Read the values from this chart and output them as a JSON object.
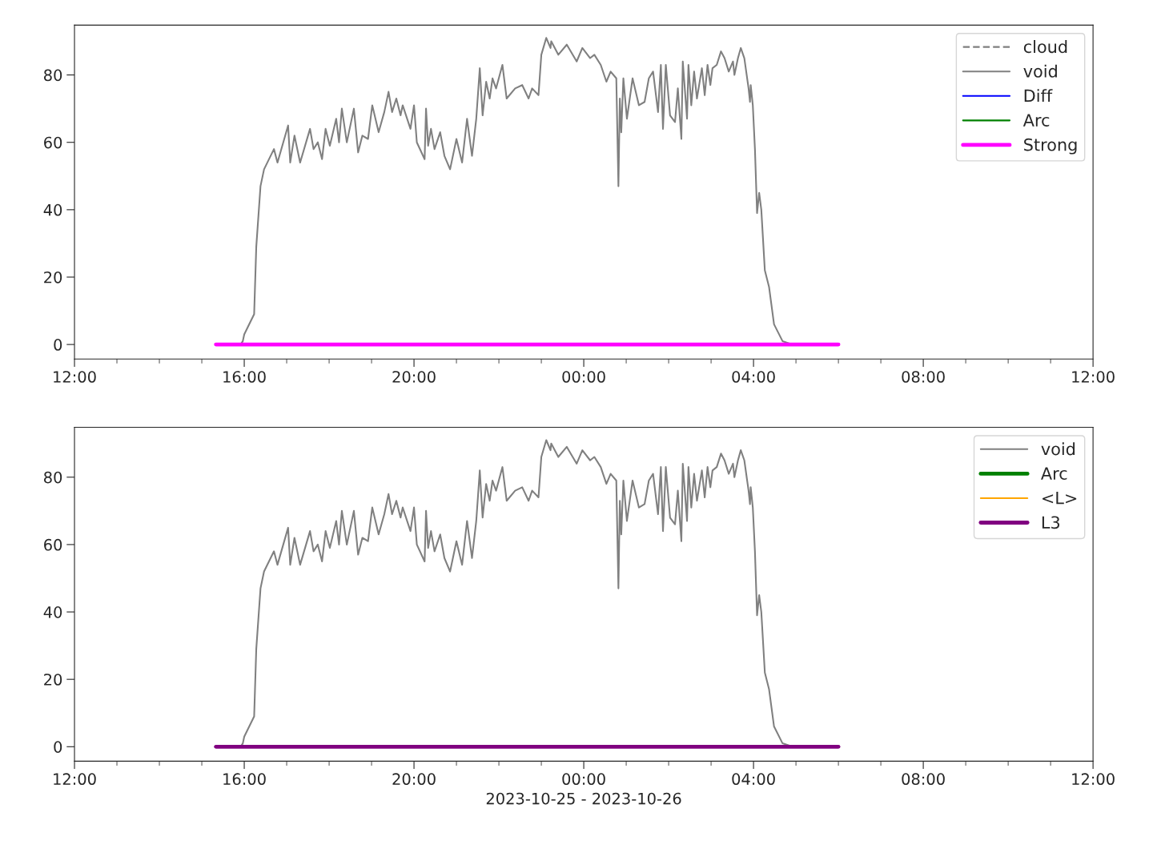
{
  "chart_data": [
    {
      "type": "line",
      "legend": "top right",
      "x": [
        "2023-10-25T15:20",
        "2023-10-25T15:55",
        "2023-10-25T15:58",
        "2023-10-25T16:00",
        "2023-10-25T16:14",
        "2023-10-25T16:17",
        "2023-10-25T16:23",
        "2023-10-25T16:28",
        "2023-10-25T16:42",
        "2023-10-25T16:47",
        "2023-10-25T17:02",
        "2023-10-25T17:05",
        "2023-10-25T17:11",
        "2023-10-25T17:19",
        "2023-10-25T17:33",
        "2023-10-25T17:38",
        "2023-10-25T17:44",
        "2023-10-25T17:50",
        "2023-10-25T17:55",
        "2023-10-25T18:01",
        "2023-10-25T18:10",
        "2023-10-25T18:14",
        "2023-10-25T18:18",
        "2023-10-25T18:25",
        "2023-10-25T18:35",
        "2023-10-25T18:41",
        "2023-10-25T18:47",
        "2023-10-25T18:55",
        "2023-10-25T19:01",
        "2023-10-25T19:10",
        "2023-10-25T19:18",
        "2023-10-25T19:24",
        "2023-10-25T19:29",
        "2023-10-25T19:35",
        "2023-10-25T19:41",
        "2023-10-25T19:44",
        "2023-10-25T19:55",
        "2023-10-25T20:00",
        "2023-10-25T20:04",
        "2023-10-25T20:15",
        "2023-10-25T20:17",
        "2023-10-25T20:20",
        "2023-10-25T20:24",
        "2023-10-25T20:29",
        "2023-10-25T20:37",
        "2023-10-25T20:43",
        "2023-10-25T20:51",
        "2023-10-25T21:00",
        "2023-10-25T21:08",
        "2023-10-25T21:15",
        "2023-10-25T21:22",
        "2023-10-25T21:28",
        "2023-10-25T21:33",
        "2023-10-25T21:37",
        "2023-10-25T21:42",
        "2023-10-25T21:47",
        "2023-10-25T21:51",
        "2023-10-25T21:56",
        "2023-10-25T22:05",
        "2023-10-25T22:11",
        "2023-10-25T22:23",
        "2023-10-25T22:33",
        "2023-10-25T22:42",
        "2023-10-25T22:47",
        "2023-10-25T22:56",
        "2023-10-25T23:00",
        "2023-10-25T23:07",
        "2023-10-25T23:13",
        "2023-10-25T23:14",
        "2023-10-25T23:24",
        "2023-10-25T23:36",
        "2023-10-25T23:50",
        "2023-10-25T23:58",
        "2023-10-26T00:09",
        "2023-10-26T00:15",
        "2023-10-26T00:24",
        "2023-10-26T00:32",
        "2023-10-26T00:38",
        "2023-10-26T00:46",
        "2023-10-26T00:49",
        "2023-10-26T00:51",
        "2023-10-26T00:53",
        "2023-10-26T00:56",
        "2023-10-26T01:01",
        "2023-10-26T01:09",
        "2023-10-26T01:18",
        "2023-10-26T01:26",
        "2023-10-26T01:32",
        "2023-10-26T01:38",
        "2023-10-26T01:45",
        "2023-10-26T01:49",
        "2023-10-26T01:52",
        "2023-10-26T01:56",
        "2023-10-26T02:02",
        "2023-10-26T02:09",
        "2023-10-26T02:13",
        "2023-10-26T02:18",
        "2023-10-26T02:20",
        "2023-10-26T02:26",
        "2023-10-26T02:28",
        "2023-10-26T02:32",
        "2023-10-26T02:36",
        "2023-10-26T02:40",
        "2023-10-26T02:47",
        "2023-10-26T02:51",
        "2023-10-26T02:55",
        "2023-10-26T02:59",
        "2023-10-26T03:02",
        "2023-10-26T03:08",
        "2023-10-26T03:14",
        "2023-10-26T03:19",
        "2023-10-26T03:25",
        "2023-10-26T03:31",
        "2023-10-26T03:33",
        "2023-10-26T03:38",
        "2023-10-26T03:42",
        "2023-10-26T03:47",
        "2023-10-26T03:53",
        "2023-10-26T03:55",
        "2023-10-26T03:56",
        "2023-10-26T03:59",
        "2023-10-26T04:02",
        "2023-10-26T04:05",
        "2023-10-26T04:08",
        "2023-10-26T04:11",
        "2023-10-26T04:16",
        "2023-10-26T04:22",
        "2023-10-26T04:29",
        "2023-10-26T04:41",
        "2023-10-26T04:55",
        "2023-10-26T06:00"
      ],
      "series": [
        {
          "name": "cloud",
          "color": "#808080",
          "line_style": "dashed",
          "values": [
            null,
            null,
            null,
            null,
            null,
            null,
            null,
            null,
            null,
            null,
            null,
            null,
            null,
            null,
            null,
            null,
            null,
            null,
            null,
            null,
            null,
            null,
            null,
            null,
            null,
            null,
            null,
            null,
            null,
            null,
            null,
            null,
            null,
            null,
            null,
            null,
            null,
            null,
            null,
            null,
            null,
            null,
            null,
            null,
            null,
            null,
            null,
            null,
            null,
            null,
            null,
            null,
            null,
            null,
            null,
            null,
            null,
            null,
            null,
            null,
            null,
            null,
            null,
            null,
            null,
            null,
            null,
            null,
            null,
            null,
            null,
            null,
            null,
            null,
            null,
            null,
            null,
            null,
            null,
            null,
            null,
            null,
            null,
            null,
            null,
            null,
            null,
            null,
            null,
            null,
            null,
            null,
            null,
            null,
            null,
            null,
            null,
            null,
            null,
            null,
            null,
            null,
            null,
            null,
            null,
            null,
            null,
            null,
            null,
            null,
            null,
            null,
            null,
            null,
            null,
            null,
            null,
            null,
            null,
            null,
            null,
            null,
            null,
            null,
            null,
            null,
            null,
            null,
            null,
            null,
            null
          ]
        },
        {
          "name": "void",
          "color": "#808080",
          "values": [
            0,
            0,
            1,
            3,
            9,
            29,
            47,
            52,
            58,
            54,
            65,
            54,
            62,
            54,
            64,
            58,
            60,
            55,
            64,
            59,
            67,
            60,
            70,
            60,
            70,
            57,
            62,
            61,
            71,
            63,
            69,
            75,
            69,
            73,
            68,
            71,
            64,
            71,
            60,
            55,
            70,
            59,
            64,
            58,
            63,
            56,
            52,
            61,
            54,
            67,
            56,
            67,
            82,
            68,
            78,
            73,
            79,
            76,
            83,
            73,
            76,
            77,
            73,
            76,
            74,
            86,
            91,
            88,
            90,
            86,
            89,
            84,
            88,
            85,
            86,
            83,
            78,
            81,
            79,
            47,
            73,
            63,
            79,
            67,
            79,
            71,
            72,
            79,
            81,
            69,
            83,
            64,
            83,
            68,
            66,
            76,
            61,
            84,
            67,
            83,
            71,
            81,
            73,
            82,
            74,
            83,
            77,
            82,
            83,
            87,
            85,
            81,
            84,
            80,
            85,
            88,
            85,
            76,
            72,
            77,
            71,
            58,
            39,
            45,
            40,
            22,
            17,
            6,
            1,
            0,
            0
          ]
        },
        {
          "name": "Diff",
          "color": "#0000ff",
          "values": [
            null,
            null,
            null,
            null,
            null,
            null,
            null,
            null,
            null,
            null,
            null,
            null,
            null,
            null,
            null,
            null,
            null,
            null,
            null,
            null,
            null,
            null,
            null,
            null,
            null,
            null,
            null,
            null,
            null,
            null,
            null,
            null,
            null,
            null,
            null,
            null,
            null,
            null,
            null,
            null,
            null,
            null,
            null,
            null,
            null,
            null,
            null,
            null,
            null,
            null,
            null,
            null,
            null,
            null,
            null,
            null,
            null,
            null,
            null,
            null,
            null,
            null,
            null,
            null,
            null,
            null,
            null,
            null,
            null,
            null,
            null,
            null,
            null,
            null,
            null,
            null,
            null,
            null,
            null,
            null,
            null,
            null,
            null,
            null,
            null,
            null,
            null,
            null,
            null,
            null,
            null,
            null,
            null,
            null,
            null,
            null,
            null,
            null,
            null,
            null,
            null,
            null,
            null,
            null,
            null,
            null,
            null,
            null,
            null,
            null,
            null,
            null,
            null,
            null,
            null,
            null,
            null,
            null,
            null,
            null,
            null,
            null,
            null,
            null,
            null,
            null,
            null,
            null,
            null,
            null,
            null
          ]
        },
        {
          "name": "Arc",
          "color": "#008000",
          "values": [
            null,
            null,
            null,
            null,
            null,
            null,
            null,
            null,
            null,
            null,
            null,
            null,
            null,
            null,
            null,
            null,
            null,
            null,
            null,
            null,
            null,
            null,
            null,
            null,
            null,
            null,
            null,
            null,
            null,
            null,
            null,
            null,
            null,
            null,
            null,
            null,
            null,
            null,
            null,
            null,
            null,
            null,
            null,
            null,
            null,
            null,
            null,
            null,
            null,
            null,
            null,
            null,
            null,
            null,
            null,
            null,
            null,
            null,
            null,
            null,
            null,
            null,
            null,
            null,
            null,
            null,
            null,
            null,
            null,
            null,
            null,
            null,
            null,
            null,
            null,
            null,
            null,
            null,
            null,
            null,
            null,
            null,
            null,
            null,
            null,
            null,
            null,
            null,
            null,
            null,
            null,
            null,
            null,
            null,
            null,
            null,
            null,
            null,
            null,
            null,
            null,
            null,
            null,
            null,
            null,
            null,
            null,
            null,
            null,
            null,
            null,
            null,
            null,
            null,
            null,
            null,
            null,
            null,
            null,
            null,
            null,
            null,
            null,
            null,
            null,
            null,
            null,
            null,
            null,
            null,
            null
          ]
        },
        {
          "name": "Strong",
          "color": "#ff00ff",
          "x": [
            "2023-10-25T15:20",
            "2023-10-26T06:00"
          ],
          "values": [
            0,
            0
          ]
        }
      ],
      "xlim": [
        "2023-10-25T12:00",
        "2023-10-26T12:00"
      ],
      "xticks": [
        {
          "value": "2023-10-25T12:00",
          "label": "12:00"
        },
        {
          "value": "2023-10-25T13:00",
          "label": null
        },
        {
          "value": "2023-10-25T14:00",
          "label": null
        },
        {
          "value": "2023-10-25T15:00",
          "label": null
        },
        {
          "value": "2023-10-25T16:00",
          "label": "16:00"
        },
        {
          "value": "2023-10-25T17:00",
          "label": null
        },
        {
          "value": "2023-10-25T18:00",
          "label": null
        },
        {
          "value": "2023-10-25T19:00",
          "label": null
        },
        {
          "value": "2023-10-25T20:00",
          "label": "20:00"
        },
        {
          "value": "2023-10-25T21:00",
          "label": null
        },
        {
          "value": "2023-10-25T22:00",
          "label": null
        },
        {
          "value": "2023-10-25T23:00",
          "label": null
        },
        {
          "value": "2023-10-26T00:00",
          "label": "00:00"
        },
        {
          "value": "2023-10-26T01:00",
          "label": null
        },
        {
          "value": "2023-10-26T02:00",
          "label": null
        },
        {
          "value": "2023-10-26T03:00",
          "label": null
        },
        {
          "value": "2023-10-26T04:00",
          "label": "04:00"
        },
        {
          "value": "2023-10-26T05:00",
          "label": null
        },
        {
          "value": "2023-10-26T06:00",
          "label": null
        },
        {
          "value": "2023-10-26T07:00",
          "label": null
        },
        {
          "value": "2023-10-26T08:00",
          "label": "08:00"
        },
        {
          "value": "2023-10-26T09:00",
          "label": null
        },
        {
          "value": "2023-10-26T10:00",
          "label": null
        },
        {
          "value": "2023-10-26T11:00",
          "label": null
        },
        {
          "value": "2023-10-26T12:00",
          "label": "12:00"
        }
      ],
      "ylim": [
        -4.3,
        94.8
      ],
      "yticks": [
        0,
        20,
        40,
        60,
        80
      ]
    },
    {
      "type": "line",
      "legend": "top right",
      "xlabel": "2023-10-25 - 2023-10-26",
      "x": [
        "2023-10-25T15:20",
        "2023-10-25T15:55",
        "2023-10-25T15:58",
        "2023-10-25T16:00",
        "2023-10-25T16:14",
        "2023-10-25T16:17",
        "2023-10-25T16:23",
        "2023-10-25T16:28",
        "2023-10-25T16:42",
        "2023-10-25T16:47",
        "2023-10-25T17:02",
        "2023-10-25T17:05",
        "2023-10-25T17:11",
        "2023-10-25T17:19",
        "2023-10-25T17:33",
        "2023-10-25T17:38",
        "2023-10-25T17:44",
        "2023-10-25T17:50",
        "2023-10-25T17:55",
        "2023-10-25T18:01",
        "2023-10-25T18:10",
        "2023-10-25T18:14",
        "2023-10-25T18:18",
        "2023-10-25T18:25",
        "2023-10-25T18:35",
        "2023-10-25T18:41",
        "2023-10-25T18:47",
        "2023-10-25T18:55",
        "2023-10-25T19:01",
        "2023-10-25T19:10",
        "2023-10-25T19:18",
        "2023-10-25T19:24",
        "2023-10-25T19:29",
        "2023-10-25T19:35",
        "2023-10-25T19:41",
        "2023-10-25T19:44",
        "2023-10-25T19:55",
        "2023-10-25T20:00",
        "2023-10-25T20:04",
        "2023-10-25T20:15",
        "2023-10-25T20:17",
        "2023-10-25T20:20",
        "2023-10-25T20:24",
        "2023-10-25T20:29",
        "2023-10-25T20:37",
        "2023-10-25T20:43",
        "2023-10-25T20:51",
        "2023-10-25T21:00",
        "2023-10-25T21:08",
        "2023-10-25T21:15",
        "2023-10-25T21:22",
        "2023-10-25T21:28",
        "2023-10-25T21:33",
        "2023-10-25T21:37",
        "2023-10-25T21:42",
        "2023-10-25T21:47",
        "2023-10-25T21:51",
        "2023-10-25T21:56",
        "2023-10-25T22:05",
        "2023-10-25T22:11",
        "2023-10-25T22:23",
        "2023-10-25T22:33",
        "2023-10-25T22:42",
        "2023-10-25T22:47",
        "2023-10-25T22:56",
        "2023-10-25T23:00",
        "2023-10-25T23:07",
        "2023-10-25T23:13",
        "2023-10-25T23:14",
        "2023-10-25T23:24",
        "2023-10-25T23:36",
        "2023-10-25T23:50",
        "2023-10-25T23:58",
        "2023-10-26T00:09",
        "2023-10-26T00:15",
        "2023-10-26T00:24",
        "2023-10-26T00:32",
        "2023-10-26T00:38",
        "2023-10-26T00:46",
        "2023-10-26T00:49",
        "2023-10-26T00:51",
        "2023-10-26T00:53",
        "2023-10-26T00:56",
        "2023-10-26T01:01",
        "2023-10-26T01:09",
        "2023-10-26T01:18",
        "2023-10-26T01:26",
        "2023-10-26T01:32",
        "2023-10-26T01:38",
        "2023-10-26T01:45",
        "2023-10-26T01:49",
        "2023-10-26T01:52",
        "2023-10-26T01:56",
        "2023-10-26T02:02",
        "2023-10-26T02:09",
        "2023-10-26T02:13",
        "2023-10-26T02:18",
        "2023-10-26T02:20",
        "2023-10-26T02:26",
        "2023-10-26T02:28",
        "2023-10-26T02:32",
        "2023-10-26T02:36",
        "2023-10-26T02:40",
        "2023-10-26T02:47",
        "2023-10-26T02:51",
        "2023-10-26T02:55",
        "2023-10-26T02:59",
        "2023-10-26T03:02",
        "2023-10-26T03:08",
        "2023-10-26T03:14",
        "2023-10-26T03:19",
        "2023-10-26T03:25",
        "2023-10-26T03:31",
        "2023-10-26T03:33",
        "2023-10-26T03:38",
        "2023-10-26T03:42",
        "2023-10-26T03:47",
        "2023-10-26T03:53",
        "2023-10-26T03:55",
        "2023-10-26T03:56",
        "2023-10-26T03:59",
        "2023-10-26T04:02",
        "2023-10-26T04:05",
        "2023-10-26T04:08",
        "2023-10-26T04:11",
        "2023-10-26T04:16",
        "2023-10-26T04:22",
        "2023-10-26T04:29",
        "2023-10-26T04:41",
        "2023-10-26T04:55",
        "2023-10-26T06:00"
      ],
      "series": [
        {
          "name": "void",
          "color": "#808080",
          "values": [
            0,
            0,
            1,
            3,
            9,
            29,
            47,
            52,
            58,
            54,
            65,
            54,
            62,
            54,
            64,
            58,
            60,
            55,
            64,
            59,
            67,
            60,
            70,
            60,
            70,
            57,
            62,
            61,
            71,
            63,
            69,
            75,
            69,
            73,
            68,
            71,
            64,
            71,
            60,
            55,
            70,
            59,
            64,
            58,
            63,
            56,
            52,
            61,
            54,
            67,
            56,
            67,
            82,
            68,
            78,
            73,
            79,
            76,
            83,
            73,
            76,
            77,
            73,
            76,
            74,
            86,
            91,
            88,
            90,
            86,
            89,
            84,
            88,
            85,
            86,
            83,
            78,
            81,
            79,
            47,
            73,
            63,
            79,
            67,
            79,
            71,
            72,
            79,
            81,
            69,
            83,
            64,
            83,
            68,
            66,
            76,
            61,
            84,
            67,
            83,
            71,
            81,
            73,
            82,
            74,
            83,
            77,
            82,
            83,
            87,
            85,
            81,
            84,
            80,
            85,
            88,
            85,
            76,
            72,
            77,
            71,
            58,
            39,
            45,
            40,
            22,
            17,
            6,
            1,
            0,
            0
          ]
        },
        {
          "name": "Arc",
          "color": "#008000",
          "values": [
            null,
            null,
            null,
            null,
            null,
            null,
            null,
            null,
            null,
            null,
            null,
            null,
            null,
            null,
            null,
            null,
            null,
            null,
            null,
            null,
            null,
            null,
            null,
            null,
            null,
            null,
            null,
            null,
            null,
            null,
            null,
            null,
            null,
            null,
            null,
            null,
            null,
            null,
            null,
            null,
            null,
            null,
            null,
            null,
            null,
            null,
            null,
            null,
            null,
            null,
            null,
            null,
            null,
            null,
            null,
            null,
            null,
            null,
            null,
            null,
            null,
            null,
            null,
            null,
            null,
            null,
            null,
            null,
            null,
            null,
            null,
            null,
            null,
            null,
            null,
            null,
            null,
            null,
            null,
            null,
            null,
            null,
            null,
            null,
            null,
            null,
            null,
            null,
            null,
            null,
            null,
            null,
            null,
            null,
            null,
            null,
            null,
            null,
            null,
            null,
            null,
            null,
            null,
            null,
            null,
            null,
            null,
            null,
            null,
            null,
            null,
            null,
            null,
            null,
            null,
            null,
            null,
            null,
            null,
            null,
            null,
            null,
            null,
            null,
            null,
            null,
            null,
            null,
            null,
            null,
            null
          ]
        },
        {
          "name": "<L>",
          "color": "#ffa500",
          "values": [
            null,
            null,
            null,
            null,
            null,
            null,
            null,
            null,
            null,
            null,
            null,
            null,
            null,
            null,
            null,
            null,
            null,
            null,
            null,
            null,
            null,
            null,
            null,
            null,
            null,
            null,
            null,
            null,
            null,
            null,
            null,
            null,
            null,
            null,
            null,
            null,
            null,
            null,
            null,
            null,
            null,
            null,
            null,
            null,
            null,
            null,
            null,
            null,
            null,
            null,
            null,
            null,
            null,
            null,
            null,
            null,
            null,
            null,
            null,
            null,
            null,
            null,
            null,
            null,
            null,
            null,
            null,
            null,
            null,
            null,
            null,
            null,
            null,
            null,
            null,
            null,
            null,
            null,
            null,
            null,
            null,
            null,
            null,
            null,
            null,
            null,
            null,
            null,
            null,
            null,
            null,
            null,
            null,
            null,
            null,
            null,
            null,
            null,
            null,
            null,
            null,
            null,
            null,
            null,
            null,
            null,
            null,
            null,
            null,
            null,
            null,
            null,
            null,
            null,
            null,
            null,
            null,
            null,
            null,
            null,
            null,
            null,
            null,
            null,
            null,
            null,
            null,
            null,
            null,
            null,
            null
          ]
        },
        {
          "name": "L3",
          "color": "#800080",
          "x": [
            "2023-10-25T15:20",
            "2023-10-26T06:00"
          ],
          "values": [
            0,
            0
          ]
        }
      ],
      "xlim": [
        "2023-10-25T12:00",
        "2023-10-26T12:00"
      ],
      "xticks": [
        {
          "value": "2023-10-25T12:00",
          "label": "12:00"
        },
        {
          "value": "2023-10-25T13:00",
          "label": null
        },
        {
          "value": "2023-10-25T14:00",
          "label": null
        },
        {
          "value": "2023-10-25T15:00",
          "label": null
        },
        {
          "value": "2023-10-25T16:00",
          "label": "16:00"
        },
        {
          "value": "2023-10-25T17:00",
          "label": null
        },
        {
          "value": "2023-10-25T18:00",
          "label": null
        },
        {
          "value": "2023-10-25T19:00",
          "label": null
        },
        {
          "value": "2023-10-25T20:00",
          "label": "20:00"
        },
        {
          "value": "2023-10-25T21:00",
          "label": null
        },
        {
          "value": "2023-10-25T22:00",
          "label": null
        },
        {
          "value": "2023-10-25T23:00",
          "label": null
        },
        {
          "value": "2023-10-26T00:00",
          "label": "00:00"
        },
        {
          "value": "2023-10-26T01:00",
          "label": null
        },
        {
          "value": "2023-10-26T02:00",
          "label": null
        },
        {
          "value": "2023-10-26T03:00",
          "label": null
        },
        {
          "value": "2023-10-26T04:00",
          "label": "04:00"
        },
        {
          "value": "2023-10-26T05:00",
          "label": null
        },
        {
          "value": "2023-10-26T06:00",
          "label": null
        },
        {
          "value": "2023-10-26T07:00",
          "label": null
        },
        {
          "value": "2023-10-26T08:00",
          "label": "08:00"
        },
        {
          "value": "2023-10-26T09:00",
          "label": null
        },
        {
          "value": "2023-10-26T10:00",
          "label": null
        },
        {
          "value": "2023-10-26T11:00",
          "label": null
        },
        {
          "value": "2023-10-26T12:00",
          "label": "12:00"
        }
      ],
      "ylim": [
        -4.3,
        94.8
      ],
      "yticks": [
        0,
        20,
        40,
        60,
        80
      ]
    }
  ]
}
